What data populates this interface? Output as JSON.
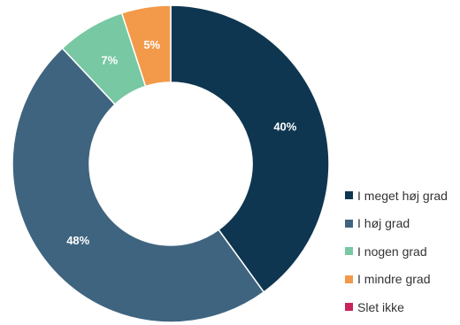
{
  "chart_data": {
    "type": "pie",
    "variant": "donut",
    "title": "",
    "categories": [
      "I meget høj grad",
      "I høj grad",
      "I nogen grad",
      "I mindre grad",
      "Slet ikke"
    ],
    "values": [
      40,
      48,
      7,
      5,
      0
    ],
    "value_labels": [
      "40%",
      "48%",
      "7%",
      "5%",
      ""
    ],
    "unit": "%",
    "colors": [
      "#0f3650",
      "#3f647f",
      "#77c8a3",
      "#f29a4a",
      "#c9245a"
    ],
    "legend": {
      "position": "right-bottom"
    },
    "slice_order": "clockwise-from-top"
  }
}
